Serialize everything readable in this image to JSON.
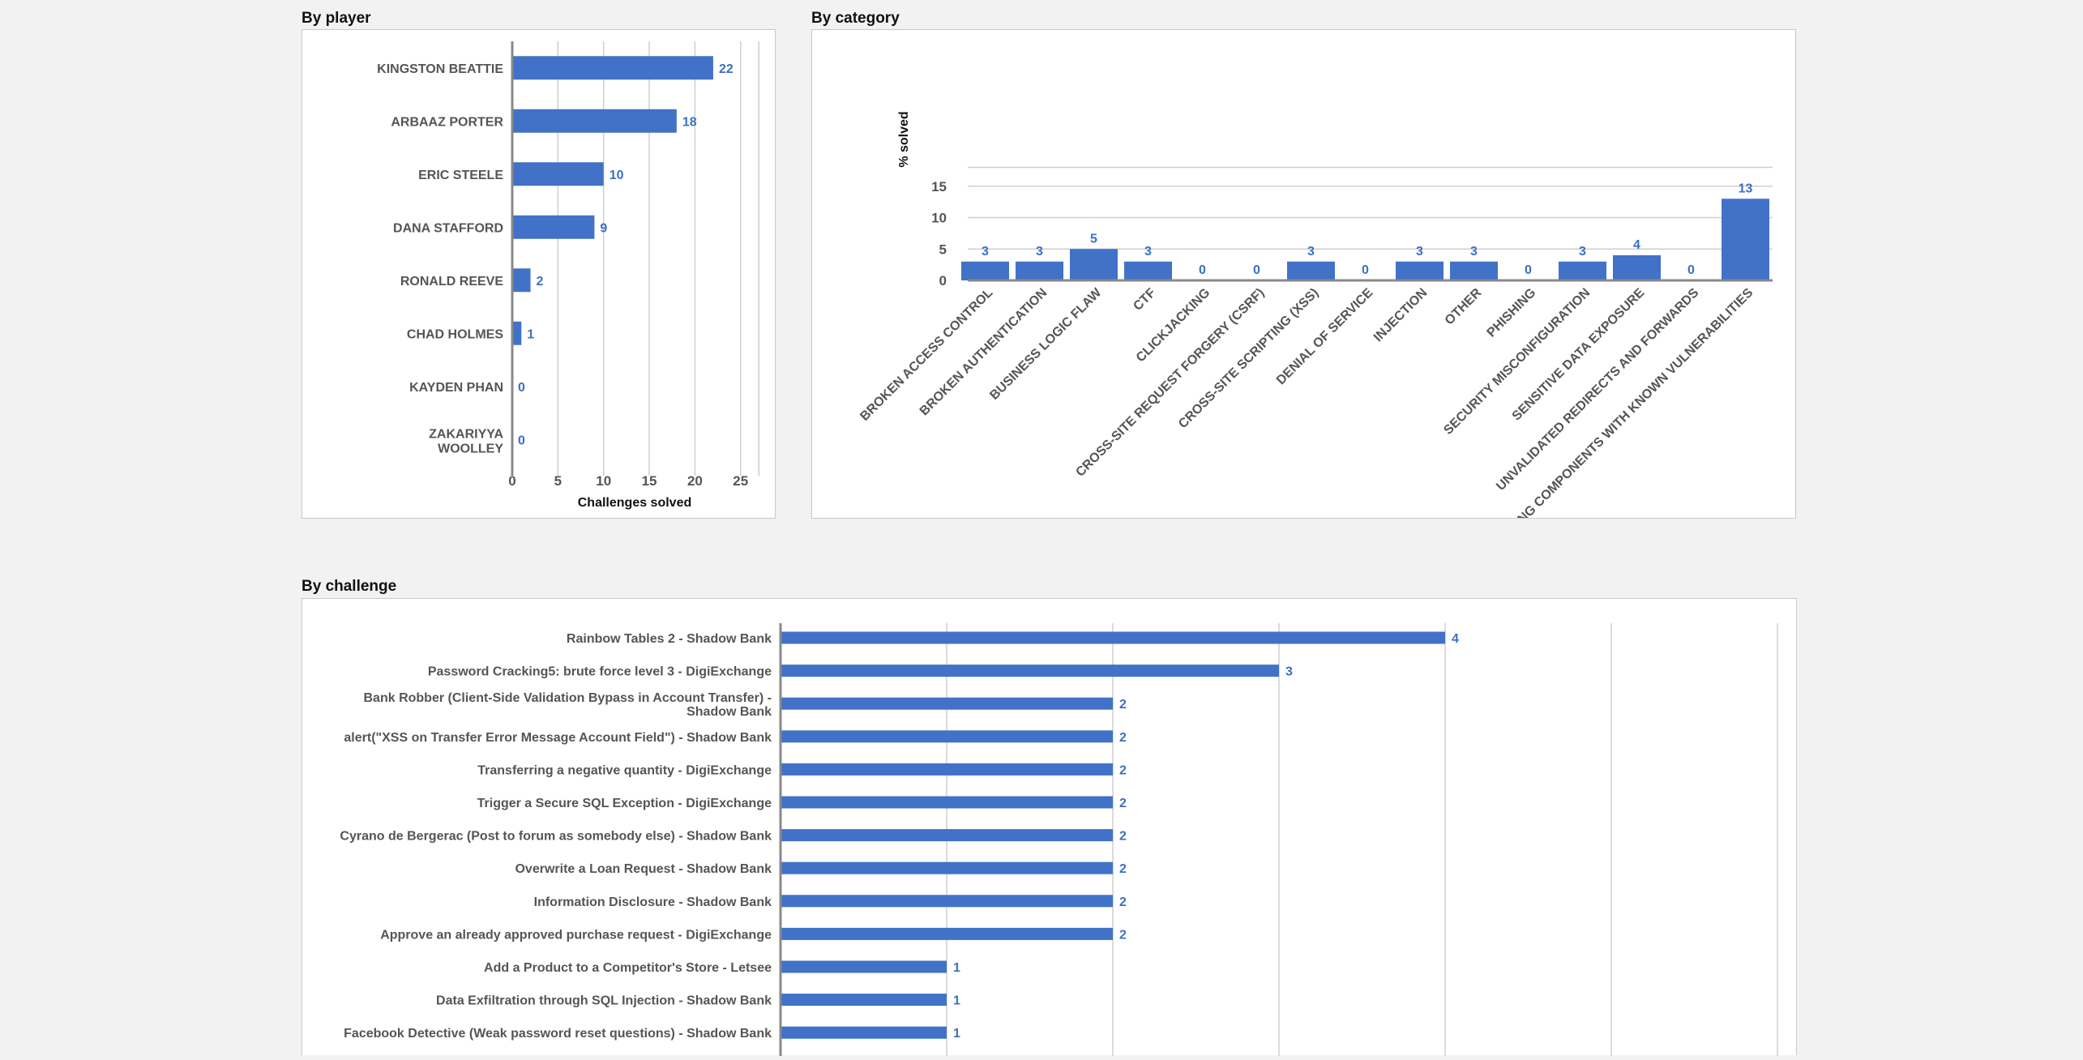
{
  "sections": {
    "by_player": "By player",
    "by_category": "By category",
    "by_challenge": "By challenge"
  },
  "colors": {
    "bar": "#4172c8",
    "value_label": "#3a70c4"
  },
  "chart_data": [
    {
      "id": "by_player",
      "type": "bar",
      "orientation": "horizontal",
      "categories": [
        "KINGSTON BEATTIE",
        "ARBAAZ PORTER",
        "ERIC STEELE",
        "DANA STAFFORD",
        "RONALD REEVE",
        "CHAD HOLMES",
        "KAYDEN PHAN",
        "ZAKARIYYA WOOLLEY"
      ],
      "values": [
        22,
        18,
        10,
        9,
        2,
        1,
        0,
        0
      ],
      "xlabel": "Challenges solved",
      "xlim": [
        0,
        27
      ],
      "xticks": [
        0,
        5,
        10,
        15,
        20,
        25
      ],
      "grid": true,
      "data_labels": true
    },
    {
      "id": "by_category",
      "type": "bar",
      "orientation": "vertical",
      "categories": [
        "BROKEN ACCESS CONTROL",
        "BROKEN AUTHENTICATION",
        "BUSINESS LOGIC FLAW",
        "CTF",
        "CLICKJACKING",
        "CROSS-SITE REQUEST FORGERY (CSRF)",
        "CROSS-SITE SCRIPTING (XSS)",
        "DENIAL OF SERVICE",
        "INJECTION",
        "OTHER",
        "PHISHING",
        "SECURITY MISCONFIGURATION",
        "SENSITIVE DATA EXPOSURE",
        "UNVALIDATED REDIRECTS AND FORWARDS",
        "USING COMPONENTS WITH KNOWN VULNERABILITIES"
      ],
      "values": [
        3,
        3,
        5,
        3,
        0,
        0,
        3,
        0,
        3,
        3,
        0,
        3,
        4,
        0,
        13
      ],
      "ylabel": "% solved",
      "ylim": [
        0,
        18
      ],
      "yticks": [
        0,
        5,
        10,
        15
      ],
      "grid": true,
      "data_labels": true
    },
    {
      "id": "by_challenge",
      "type": "bar",
      "orientation": "horizontal",
      "categories": [
        "Rainbow Tables 2 - Shadow Bank",
        "Password Cracking5: brute force level 3 - DigiExchange",
        "Bank Robber (Client-Side Validation Bypass in Account Transfer) - Shadow Bank",
        "alert(\"XSS on Transfer Error Message Account Field\") - Shadow Bank",
        "Transferring a negative quantity - DigiExchange",
        "Trigger a Secure SQL Exception - DigiExchange",
        "Cyrano de Bergerac (Post to forum as somebody else) - Shadow Bank",
        "Overwrite a Loan Request - Shadow Bank",
        "Information Disclosure - Shadow Bank",
        "Approve an already approved purchase request - DigiExchange",
        "Add a Product to a Competitor's Store - Letsee",
        "Data Exfiltration through SQL Injection - Shadow Bank",
        "Facebook Detective (Weak password reset questions) - Shadow Bank"
      ],
      "values": [
        4,
        3,
        2,
        2,
        2,
        2,
        2,
        2,
        2,
        2,
        1,
        1,
        1
      ],
      "xlim": [
        0,
        6
      ],
      "grid": true,
      "data_labels": true
    }
  ]
}
